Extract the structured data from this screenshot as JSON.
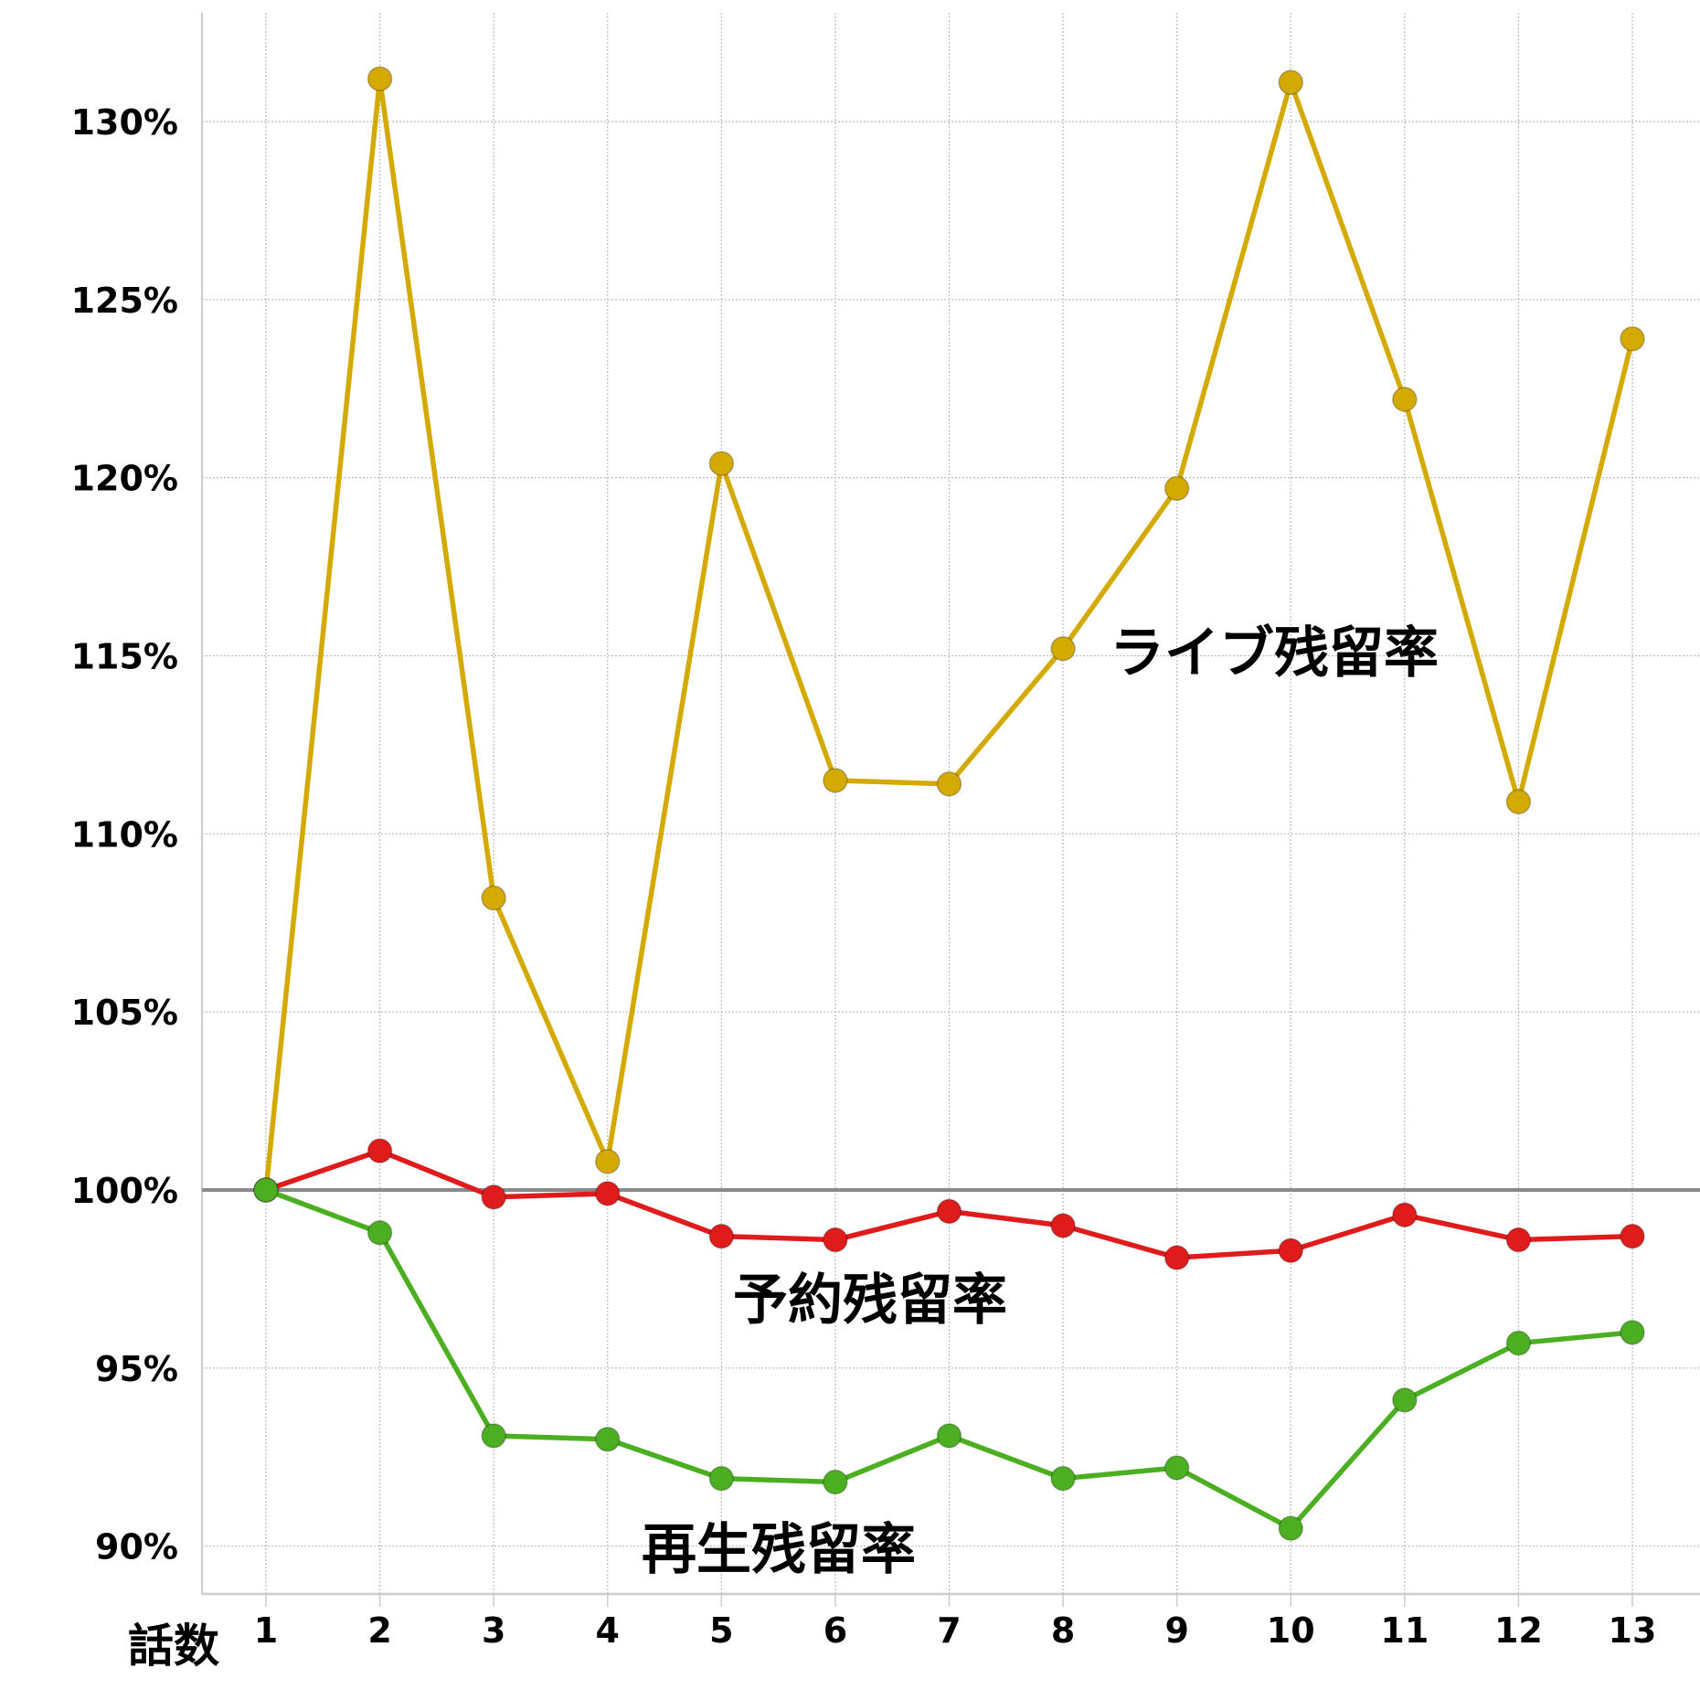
{
  "chart_data": {
    "type": "line",
    "xlabel": "話数",
    "ylabel": "",
    "categories": [
      "1",
      "2",
      "3",
      "4",
      "5",
      "6",
      "7",
      "8",
      "9",
      "10",
      "11",
      "12",
      "13"
    ],
    "ylim": [
      88.7,
      133.0
    ],
    "yticks": [
      90,
      95,
      100,
      105,
      110,
      115,
      120,
      125,
      130
    ],
    "ytick_labels": [
      "90%",
      "95%",
      "100%",
      "105%",
      "110%",
      "115%",
      "120%",
      "125%",
      "130%"
    ],
    "grid": true,
    "reference_line": 100,
    "series": [
      {
        "name": "ライブ残留率",
        "color": "#d4aa00",
        "values": [
          100,
          131.2,
          108.2,
          100.8,
          120.4,
          111.5,
          111.4,
          115.2,
          119.7,
          131.1,
          122.2,
          110.9,
          123.9
        ]
      },
      {
        "name": "予約残留率",
        "color": "#e01b1b",
        "values": [
          100,
          101.1,
          99.8,
          99.9,
          98.7,
          98.6,
          99.4,
          99.0,
          98.1,
          98.3,
          99.3,
          98.6,
          98.7
        ]
      },
      {
        "name": "再生残留率",
        "color": "#4caf22",
        "values": [
          100,
          98.8,
          93.1,
          93.0,
          91.9,
          91.8,
          93.1,
          91.9,
          92.2,
          90.5,
          94.1,
          95.7,
          96.0
        ]
      }
    ]
  }
}
